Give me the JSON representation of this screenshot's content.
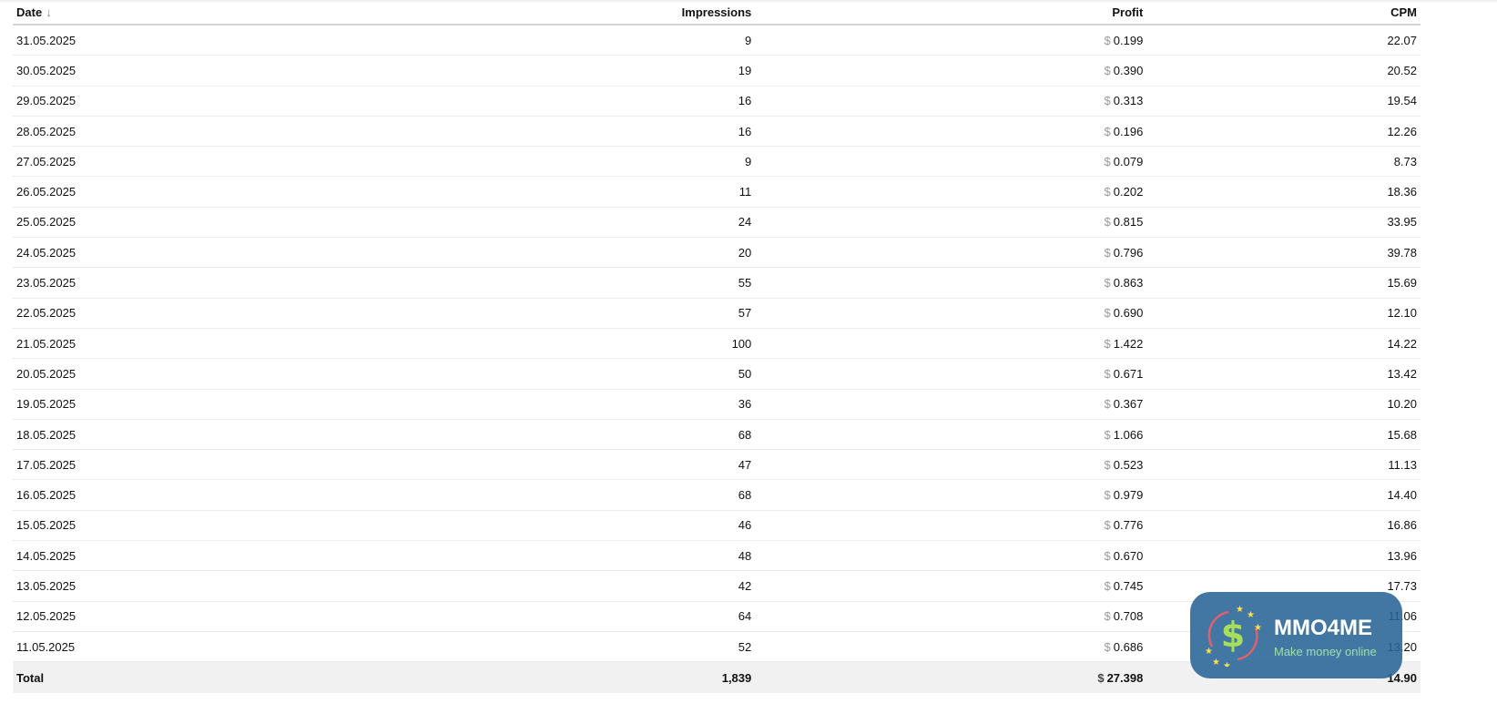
{
  "table": {
    "headers": {
      "date": "Date",
      "impressions": "Impressions",
      "profit": "Profit",
      "cpm": "CPM"
    },
    "sort": {
      "column": "date",
      "direction": "descending",
      "icon": "arrow-down-icon"
    },
    "currency": "$",
    "rows": [
      {
        "date": "31.05.2025",
        "impressions": "9",
        "profit": "0.199",
        "cpm": "22.07"
      },
      {
        "date": "30.05.2025",
        "impressions": "19",
        "profit": "0.390",
        "cpm": "20.52"
      },
      {
        "date": "29.05.2025",
        "impressions": "16",
        "profit": "0.313",
        "cpm": "19.54"
      },
      {
        "date": "28.05.2025",
        "impressions": "16",
        "profit": "0.196",
        "cpm": "12.26"
      },
      {
        "date": "27.05.2025",
        "impressions": "9",
        "profit": "0.079",
        "cpm": "8.73"
      },
      {
        "date": "26.05.2025",
        "impressions": "11",
        "profit": "0.202",
        "cpm": "18.36"
      },
      {
        "date": "25.05.2025",
        "impressions": "24",
        "profit": "0.815",
        "cpm": "33.95"
      },
      {
        "date": "24.05.2025",
        "impressions": "20",
        "profit": "0.796",
        "cpm": "39.78"
      },
      {
        "date": "23.05.2025",
        "impressions": "55",
        "profit": "0.863",
        "cpm": "15.69"
      },
      {
        "date": "22.05.2025",
        "impressions": "57",
        "profit": "0.690",
        "cpm": "12.10"
      },
      {
        "date": "21.05.2025",
        "impressions": "100",
        "profit": "1.422",
        "cpm": "14.22"
      },
      {
        "date": "20.05.2025",
        "impressions": "50",
        "profit": "0.671",
        "cpm": "13.42"
      },
      {
        "date": "19.05.2025",
        "impressions": "36",
        "profit": "0.367",
        "cpm": "10.20"
      },
      {
        "date": "18.05.2025",
        "impressions": "68",
        "profit": "1.066",
        "cpm": "15.68"
      },
      {
        "date": "17.05.2025",
        "impressions": "47",
        "profit": "0.523",
        "cpm": "11.13"
      },
      {
        "date": "16.05.2025",
        "impressions": "68",
        "profit": "0.979",
        "cpm": "14.40"
      },
      {
        "date": "15.05.2025",
        "impressions": "46",
        "profit": "0.776",
        "cpm": "16.86"
      },
      {
        "date": "14.05.2025",
        "impressions": "48",
        "profit": "0.670",
        "cpm": "13.96"
      },
      {
        "date": "13.05.2025",
        "impressions": "42",
        "profit": "0.745",
        "cpm": "17.73"
      },
      {
        "date": "12.05.2025",
        "impressions": "64",
        "profit": "0.708",
        "cpm": "11.06"
      },
      {
        "date": "11.05.2025",
        "impressions": "52",
        "profit": "0.686",
        "cpm": "13.20"
      }
    ],
    "total": {
      "label": "Total",
      "impressions": "1,839",
      "profit": "27.398",
      "cpm": "14.90"
    }
  },
  "watermark": {
    "title": "MMO4ME",
    "subtitle": "Make money online"
  }
}
